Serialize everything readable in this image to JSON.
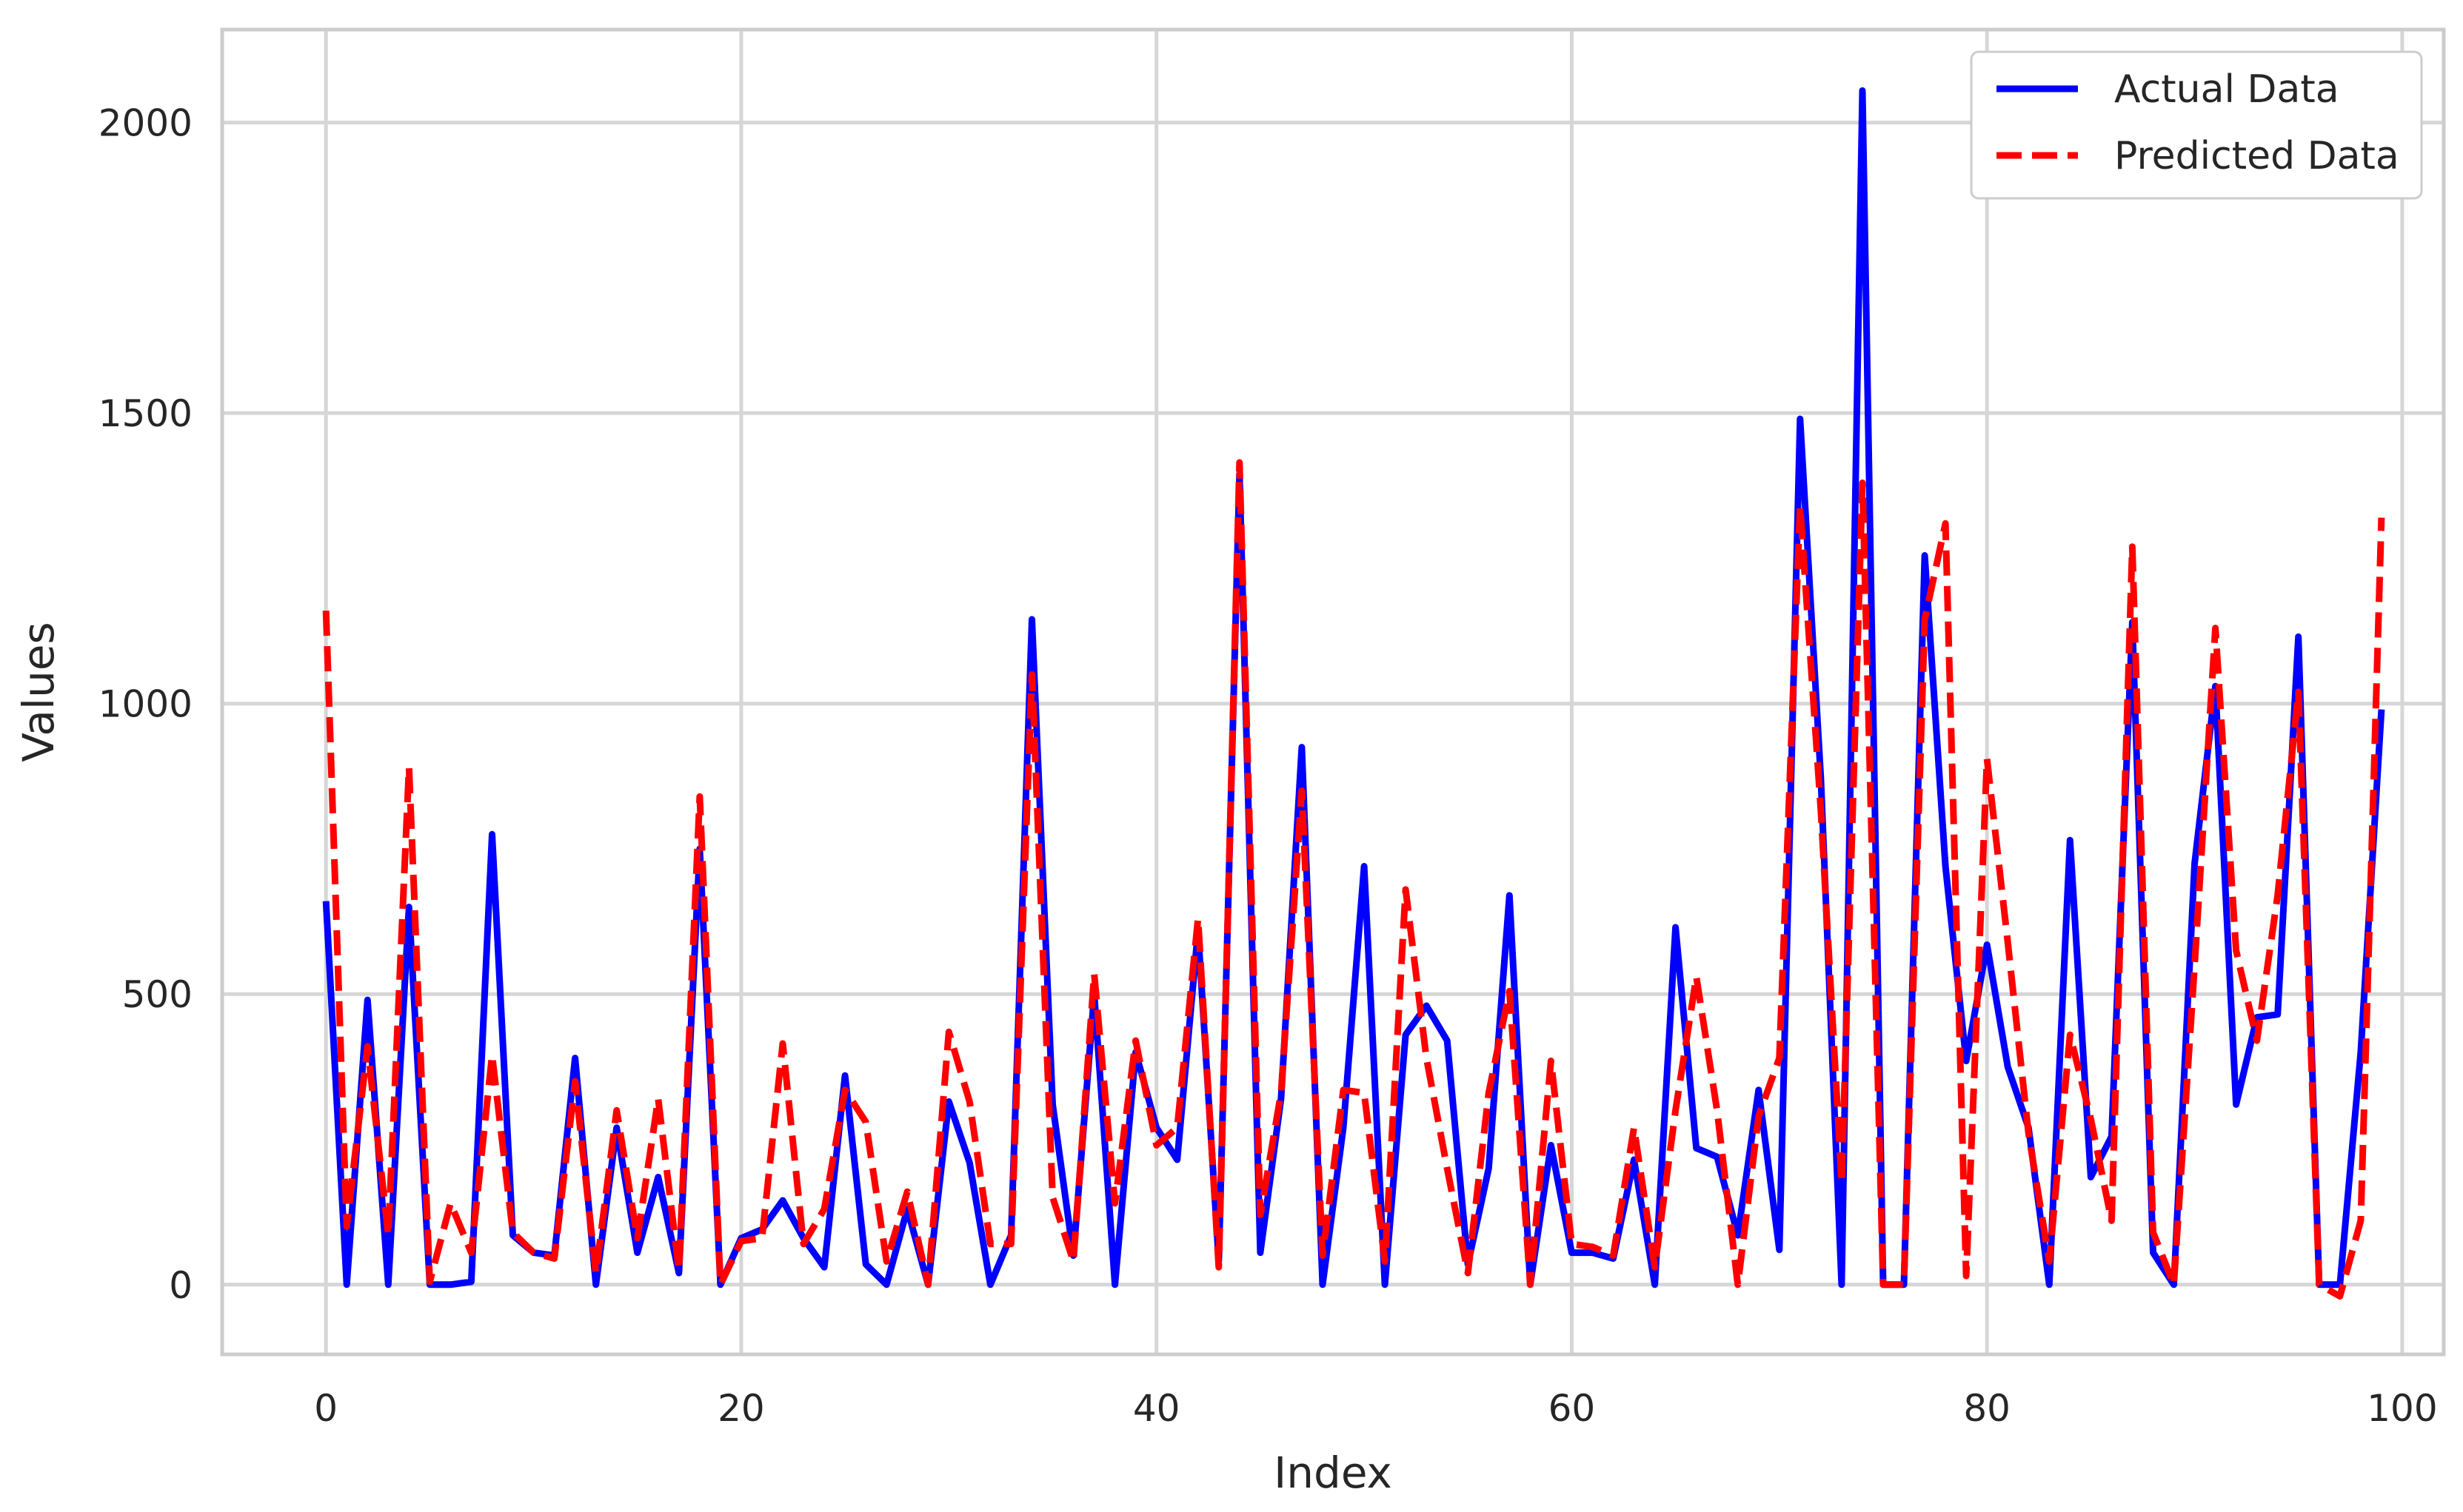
{
  "chart_data": {
    "type": "line",
    "title": "",
    "xlabel": "Index",
    "ylabel": "Values",
    "xlim": [
      -5,
      102
    ],
    "ylim": [
      -120,
      2160
    ],
    "xticks": [
      0,
      20,
      40,
      60,
      80,
      100
    ],
    "yticks": [
      0,
      500,
      1000,
      1500,
      2000
    ],
    "grid": true,
    "legend_position": "top-right",
    "x": [
      0,
      1,
      2,
      3,
      4,
      5,
      6,
      7,
      8,
      9,
      10,
      11,
      12,
      13,
      14,
      15,
      16,
      17,
      18,
      19,
      20,
      21,
      22,
      23,
      24,
      25,
      26,
      27,
      28,
      29,
      30,
      31,
      32,
      33,
      34,
      35,
      36,
      37,
      38,
      39,
      40,
      41,
      42,
      43,
      44,
      45,
      46,
      47,
      48,
      49,
      50,
      51,
      52,
      53,
      54,
      55,
      56,
      57,
      58,
      59,
      60,
      61,
      62,
      63,
      64,
      65,
      66,
      67,
      68,
      69,
      70,
      71,
      72,
      73,
      74,
      75,
      76,
      77,
      78,
      79,
      80,
      81,
      82,
      83,
      84,
      85,
      86,
      87,
      88,
      89,
      90,
      91,
      92,
      93,
      94,
      95,
      96,
      97,
      98,
      99
    ],
    "series": [
      {
        "name": "Actual Data",
        "color": "#0000ff",
        "style": "solid",
        "values": [
          660,
          0,
          490,
          0,
          650,
          0,
          0,
          5,
          775,
          85,
          55,
          50,
          390,
          0,
          270,
          55,
          185,
          20,
          750,
          0,
          80,
          95,
          145,
          80,
          30,
          360,
          35,
          0,
          130,
          0,
          315,
          210,
          0,
          85,
          1145,
          310,
          50,
          500,
          0,
          400,
          270,
          215,
          610,
          40,
          1395,
          55,
          320,
          925,
          0,
          270,
          720,
          0,
          430,
          480,
          420,
          35,
          200,
          670,
          0,
          240,
          55,
          55,
          45,
          215,
          0,
          615,
          235,
          220,
          85,
          335,
          60,
          1490,
          870,
          0,
          2055,
          0,
          0,
          1255,
          720,
          385,
          585,
          375,
          270,
          0,
          765,
          185,
          255,
          1140,
          55,
          0,
          725,
          1030,
          310,
          460,
          465,
          1115,
          0,
          0,
          400,
          990
        ]
      },
      {
        "name": "Predicted Data",
        "color": "#ff0000",
        "style": "dashed",
        "values": [
          1160,
          100,
          410,
          85,
          890,
          5,
          140,
          55,
          395,
          90,
          55,
          45,
          350,
          20,
          300,
          80,
          320,
          25,
          840,
          0,
          75,
          80,
          415,
          70,
          130,
          335,
          280,
          40,
          160,
          0,
          435,
          315,
          70,
          70,
          1050,
          150,
          40,
          535,
          140,
          420,
          240,
          270,
          630,
          30,
          1415,
          120,
          330,
          850,
          50,
          335,
          330,
          40,
          680,
          390,
          200,
          20,
          330,
          505,
          0,
          385,
          70,
          65,
          50,
          270,
          30,
          300,
          530,
          300,
          0,
          290,
          390,
          1340,
          815,
          175,
          1380,
          0,
          0,
          1145,
          1310,
          15,
          905,
          590,
          260,
          40,
          430,
          285,
          110,
          1270,
          90,
          0,
          550,
          1130,
          575,
          420,
          670,
          1020,
          0,
          -20,
          110,
          1320
        ]
      }
    ]
  }
}
